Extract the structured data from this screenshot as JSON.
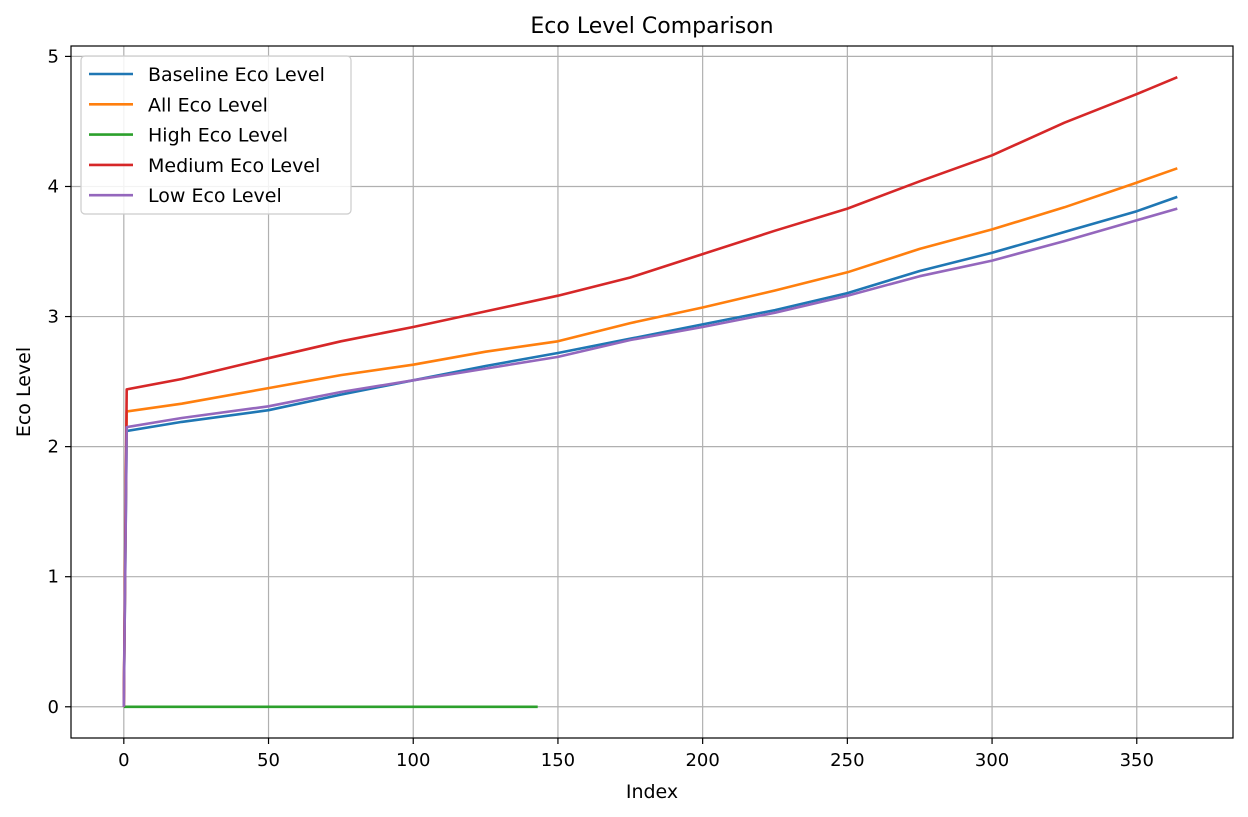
{
  "chart_data": {
    "type": "line",
    "title": "Eco Level Comparison",
    "xlabel": "Index",
    "ylabel": "Eco Level",
    "xlim": [
      -18.25,
      383.25
    ],
    "ylim": [
      -0.24,
      5.08
    ],
    "xticks": [
      0,
      50,
      100,
      150,
      200,
      250,
      300,
      350
    ],
    "yticks": [
      0,
      1,
      2,
      3,
      4,
      5
    ],
    "grid": true,
    "legend_position": "top-left",
    "series": [
      {
        "name": "Baseline Eco Level",
        "color": "#1f77b4",
        "x": [
          0,
          1,
          20,
          50,
          75,
          100,
          125,
          150,
          175,
          200,
          225,
          250,
          275,
          300,
          325,
          350,
          364
        ],
        "y": [
          0,
          2.12,
          2.19,
          2.28,
          2.4,
          2.51,
          2.62,
          2.72,
          2.83,
          2.94,
          3.05,
          3.18,
          3.35,
          3.49,
          3.65,
          3.81,
          3.92
        ]
      },
      {
        "name": "All Eco Level",
        "color": "#ff7f0e",
        "x": [
          0,
          1,
          20,
          50,
          75,
          100,
          125,
          150,
          175,
          200,
          225,
          250,
          275,
          300,
          325,
          350,
          364
        ],
        "y": [
          0,
          2.27,
          2.33,
          2.45,
          2.55,
          2.63,
          2.73,
          2.81,
          2.95,
          3.07,
          3.2,
          3.34,
          3.52,
          3.67,
          3.84,
          4.03,
          4.14
        ]
      },
      {
        "name": "High Eco Level",
        "color": "#2ca02c",
        "x": [
          0,
          143
        ],
        "y": [
          0,
          0
        ]
      },
      {
        "name": "Medium Eco Level",
        "color": "#d62728",
        "x": [
          0,
          1,
          20,
          50,
          75,
          100,
          125,
          150,
          175,
          200,
          225,
          250,
          275,
          300,
          325,
          350,
          364
        ],
        "y": [
          0,
          2.44,
          2.52,
          2.68,
          2.81,
          2.92,
          3.04,
          3.16,
          3.3,
          3.48,
          3.66,
          3.83,
          4.04,
          4.24,
          4.49,
          4.71,
          4.84
        ]
      },
      {
        "name": "Low Eco Level",
        "color": "#9467bd",
        "x": [
          0,
          1,
          20,
          50,
          75,
          100,
          125,
          150,
          175,
          200,
          225,
          250,
          275,
          300,
          325,
          350,
          364
        ],
        "y": [
          0,
          2.15,
          2.22,
          2.31,
          2.42,
          2.51,
          2.6,
          2.69,
          2.82,
          2.92,
          3.03,
          3.16,
          3.31,
          3.43,
          3.58,
          3.74,
          3.83
        ]
      }
    ]
  }
}
